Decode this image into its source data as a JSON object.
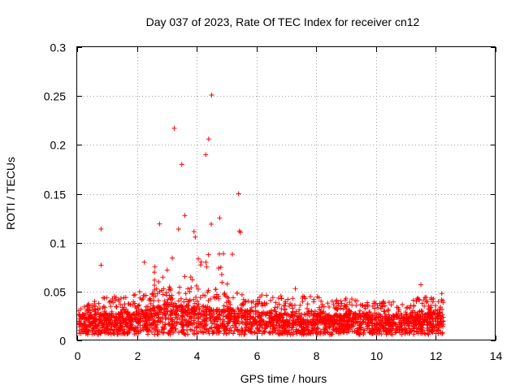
{
  "chart_data": {
    "type": "scatter",
    "title": "Day 037 of 2023, Rate Of TEC Index for receiver cn12",
    "xlabel": "GPS time / hours",
    "ylabel": "ROTI / TECUs",
    "xlim": [
      0,
      14
    ],
    "ylim": [
      0,
      0.3
    ],
    "xticks": [
      "0",
      "2",
      "4",
      "6",
      "8",
      "10",
      "12",
      "14"
    ],
    "yticks": [
      "0",
      "0.05",
      "0.1",
      "0.15",
      "0.2",
      "0.25",
      "0.3"
    ],
    "grid": true,
    "marker": "+",
    "color": "#ff0000",
    "notable_points": [
      {
        "x": 4.5,
        "y": 0.251
      },
      {
        "x": 3.25,
        "y": 0.217
      },
      {
        "x": 4.4,
        "y": 0.206
      },
      {
        "x": 3.5,
        "y": 0.18
      },
      {
        "x": 4.3,
        "y": 0.19
      },
      {
        "x": 5.4,
        "y": 0.15
      },
      {
        "x": 0.8,
        "y": 0.114
      },
      {
        "x": 0.8,
        "y": 0.077
      },
      {
        "x": 7.3,
        "y": 0.053
      },
      {
        "x": 11.5,
        "y": 0.057
      },
      {
        "x": 12.2,
        "y": 0.048
      }
    ],
    "envelope": [
      {
        "x": 0.0,
        "baseline": 0.015,
        "upper": 0.03
      },
      {
        "x": 0.5,
        "baseline": 0.015,
        "upper": 0.04
      },
      {
        "x": 1.0,
        "baseline": 0.016,
        "upper": 0.045
      },
      {
        "x": 1.5,
        "baseline": 0.017,
        "upper": 0.045
      },
      {
        "x": 2.0,
        "baseline": 0.018,
        "upper": 0.05
      },
      {
        "x": 2.5,
        "baseline": 0.022,
        "upper": 0.12
      },
      {
        "x": 3.0,
        "baseline": 0.025,
        "upper": 0.17
      },
      {
        "x": 3.5,
        "baseline": 0.025,
        "upper": 0.15
      },
      {
        "x": 4.0,
        "baseline": 0.024,
        "upper": 0.13
      },
      {
        "x": 4.5,
        "baseline": 0.022,
        "upper": 0.19
      },
      {
        "x": 5.0,
        "baseline": 0.02,
        "upper": 0.09
      },
      {
        "x": 5.5,
        "baseline": 0.02,
        "upper": 0.13
      },
      {
        "x": 6.0,
        "baseline": 0.018,
        "upper": 0.06
      },
      {
        "x": 6.5,
        "baseline": 0.017,
        "upper": 0.05
      },
      {
        "x": 7.0,
        "baseline": 0.016,
        "upper": 0.045
      },
      {
        "x": 7.5,
        "baseline": 0.016,
        "upper": 0.045
      },
      {
        "x": 8.0,
        "baseline": 0.016,
        "upper": 0.048
      },
      {
        "x": 8.5,
        "baseline": 0.015,
        "upper": 0.04
      },
      {
        "x": 9.0,
        "baseline": 0.016,
        "upper": 0.045
      },
      {
        "x": 9.5,
        "baseline": 0.016,
        "upper": 0.04
      },
      {
        "x": 10.0,
        "baseline": 0.015,
        "upper": 0.04
      },
      {
        "x": 10.5,
        "baseline": 0.015,
        "upper": 0.04
      },
      {
        "x": 11.0,
        "baseline": 0.015,
        "upper": 0.038
      },
      {
        "x": 11.5,
        "baseline": 0.016,
        "upper": 0.045
      },
      {
        "x": 12.0,
        "baseline": 0.017,
        "upper": 0.045
      },
      {
        "x": 12.25,
        "baseline": 0.017,
        "upper": 0.048
      }
    ]
  }
}
